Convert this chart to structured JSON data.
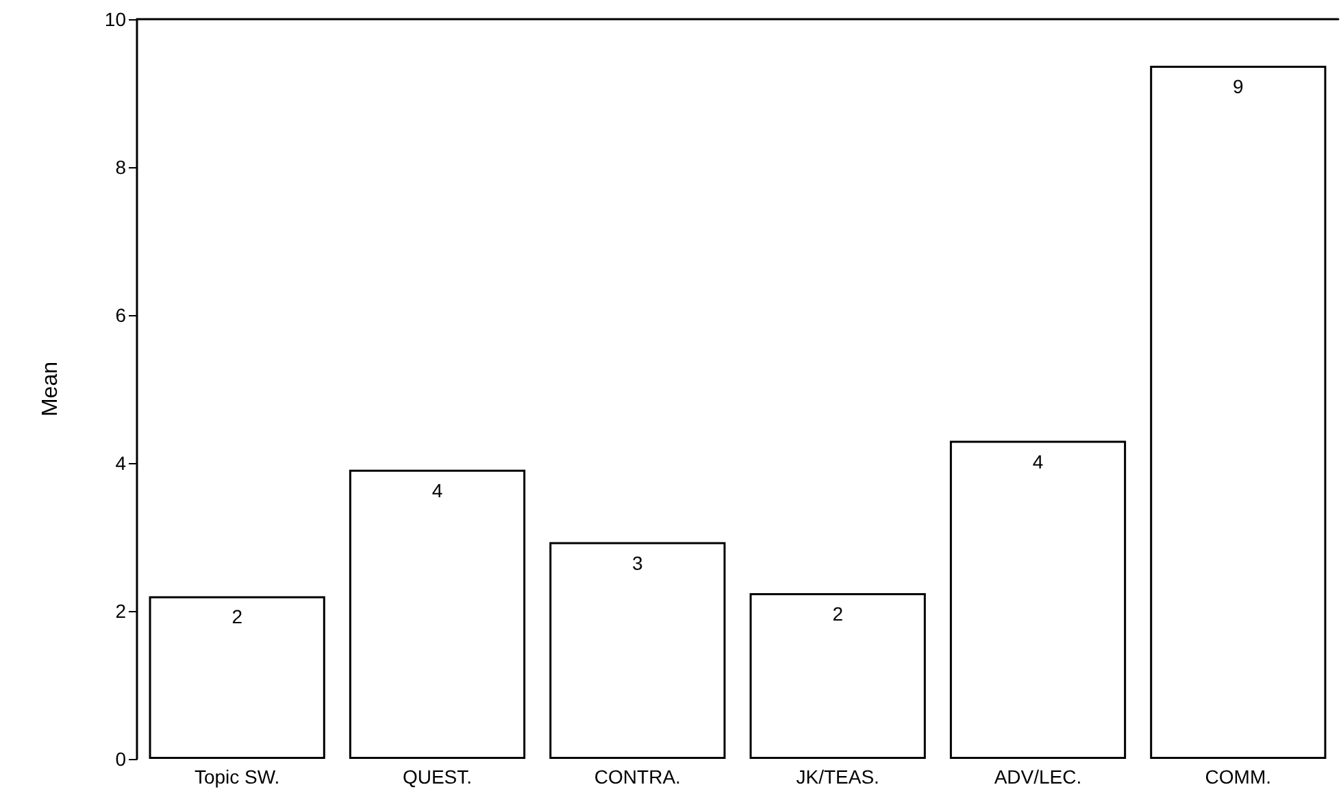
{
  "chart_data": {
    "type": "bar",
    "ylabel": "Mean",
    "categories": [
      "Topic SW.",
      "QUEST.",
      "CONTRA.",
      "JK/TEAS.",
      "ADV/LEC.",
      "COMM."
    ],
    "values": [
      2.2,
      3.91,
      2.93,
      2.24,
      4.3,
      9.37
    ],
    "value_labels": [
      "2",
      "4",
      "3",
      "2",
      "4",
      "9"
    ],
    "color": "#ffffff",
    "ylim": [
      0,
      10
    ],
    "yticks": [
      0,
      2,
      4,
      6,
      8,
      10
    ],
    "grid": false
  }
}
